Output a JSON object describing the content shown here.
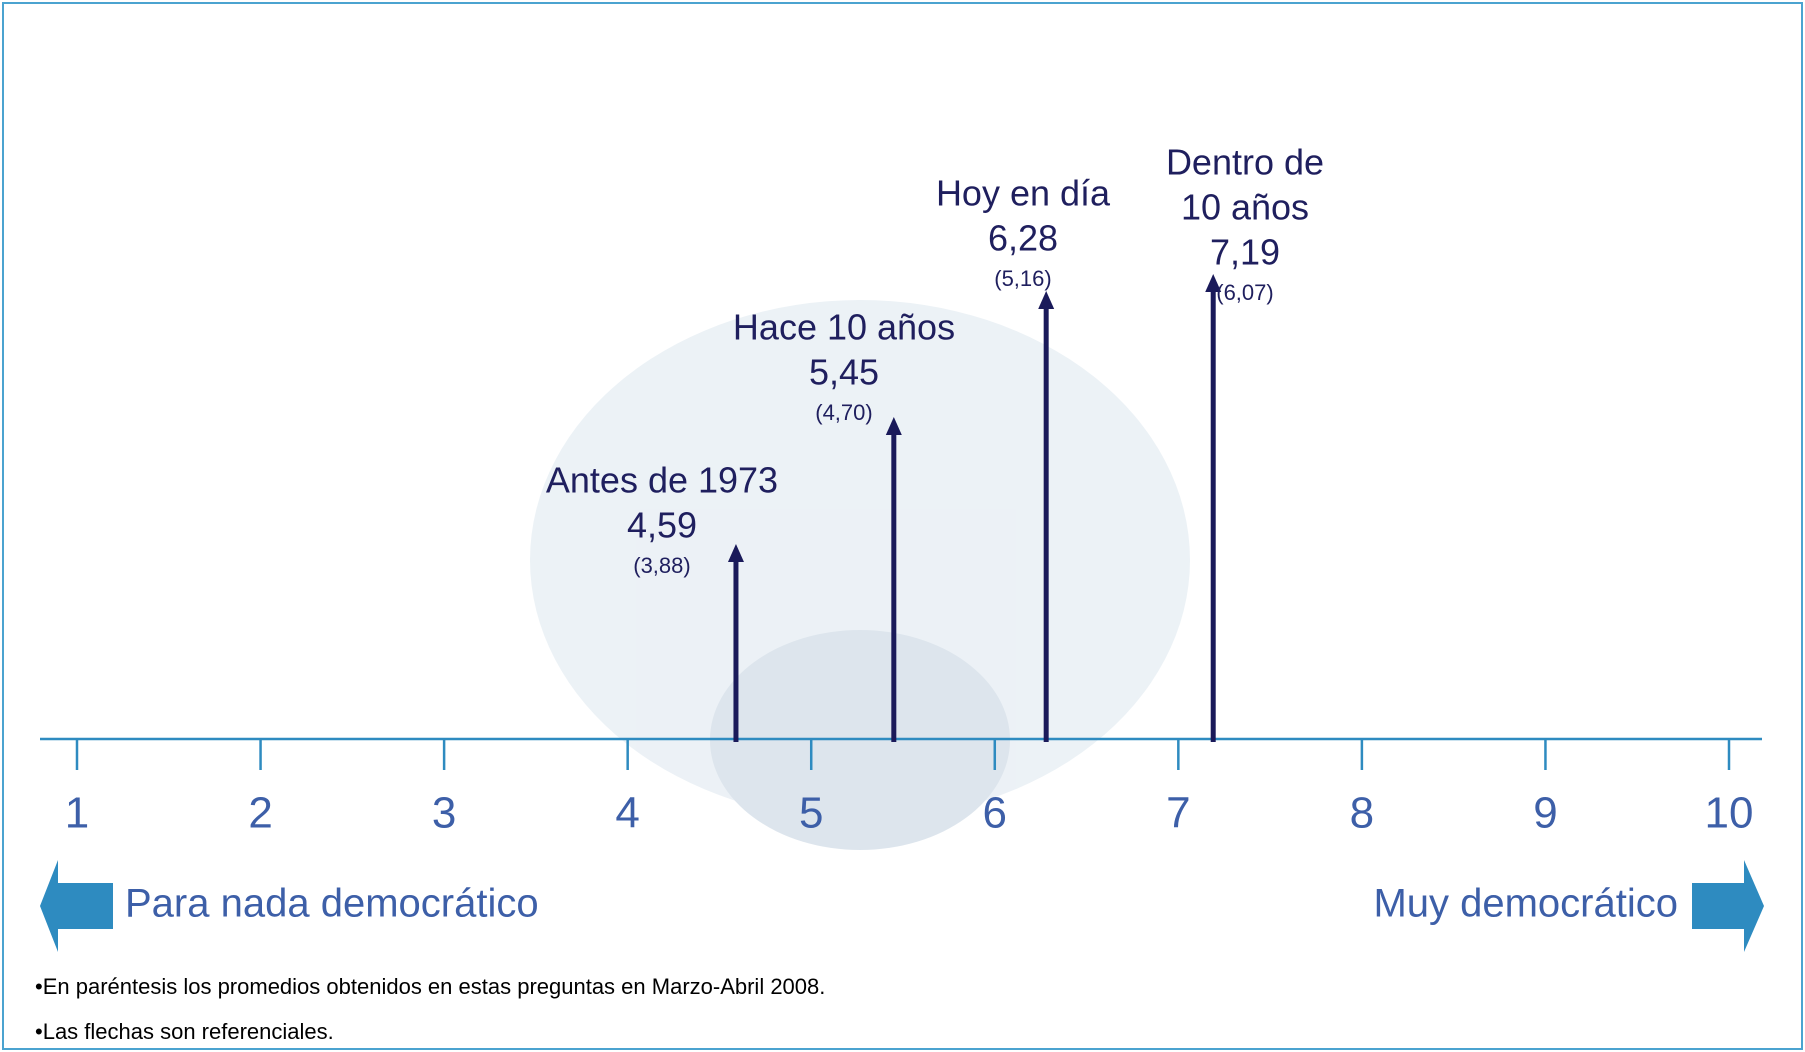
{
  "chart_data": {
    "type": "arrow",
    "xlim": [
      1,
      10
    ],
    "xticks": [
      1,
      2,
      3,
      4,
      5,
      6,
      7,
      8,
      9,
      10
    ],
    "axis_low_label": "Para nada democrático",
    "axis_high_label": "Muy democrático",
    "color": "#1a1a5a",
    "categories": [
      [
        "Antes de 1973"
      ],
      [
        "Hace 10 años"
      ],
      [
        "Hoy en día"
      ],
      [
        "Dentro de",
        "10 años"
      ]
    ],
    "values": [
      4.59,
      5.45,
      6.28,
      7.19
    ],
    "value_labels": [
      "4,59",
      "5,45",
      "6,28",
      "7,19"
    ],
    "previous_values": [
      3.88,
      4.7,
      5.16,
      6.07
    ],
    "previous_value_labels": [
      "(3,88)",
      "(4,70)",
      "(5,16)",
      "(6,07)"
    ],
    "notes": [
      "•En paréntesis los promedios obtenidos en estas preguntas en Marzo-Abril 2008.",
      "•Las flechas son referenciales."
    ]
  }
}
